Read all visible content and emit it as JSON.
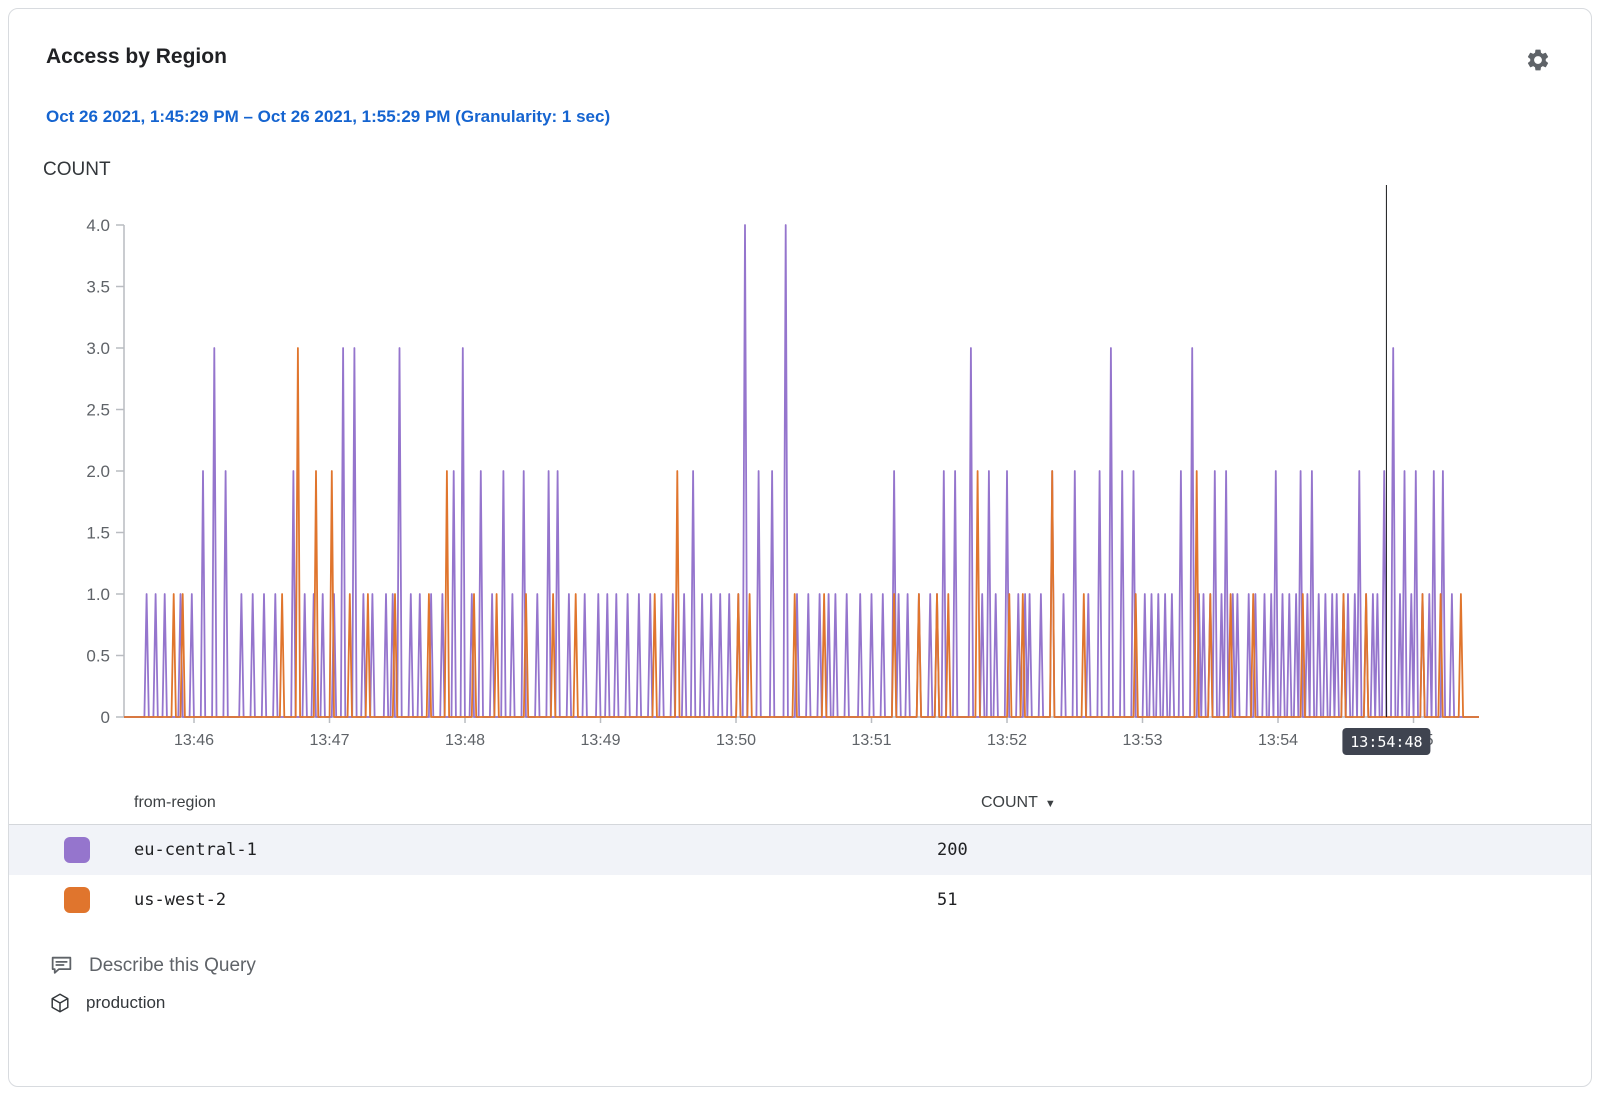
{
  "header": {
    "title": "Access by Region"
  },
  "time_range": "Oct 26 2021, 1:45:29 PM – Oct 26 2021, 1:55:29 PM (Granularity: 1 sec)",
  "chart": {
    "y_label": "COUNT",
    "crosshair_label": "13:54:48",
    "crosshair_t": 559
  },
  "chart_data": {
    "type": "line",
    "title": "Access by Region",
    "x_start": "13:45:29",
    "x_end": "13:55:29",
    "granularity_sec": 1,
    "x_domain_sec": [
      0,
      600
    ],
    "ylim": [
      0,
      4
    ],
    "y_ticks": [
      "0",
      "0.5",
      "1.0",
      "1.5",
      "2.0",
      "2.5",
      "3.0",
      "3.5",
      "4.0"
    ],
    "x_ticks": [
      [
        "13:46",
        31
      ],
      [
        "13:47",
        91
      ],
      [
        "13:48",
        151
      ],
      [
        "13:49",
        211
      ],
      [
        "13:50",
        271
      ],
      [
        "13:51",
        331
      ],
      [
        "13:52",
        391
      ],
      [
        "13:53",
        451
      ],
      [
        "13:54",
        511
      ],
      [
        "13:55",
        571
      ]
    ],
    "legend_position": "table-below",
    "grid": false,
    "series": [
      {
        "name": "eu-central-1",
        "color": "#9575cd",
        "total": 200,
        "spikes": [
          [
            10,
            1
          ],
          [
            14,
            1
          ],
          [
            18,
            1
          ],
          [
            25,
            1
          ],
          [
            30,
            1
          ],
          [
            35,
            2
          ],
          [
            40,
            3
          ],
          [
            45,
            2
          ],
          [
            52,
            1
          ],
          [
            57,
            1
          ],
          [
            62,
            1
          ],
          [
            67,
            1
          ],
          [
            75,
            2
          ],
          [
            80,
            1
          ],
          [
            84,
            1
          ],
          [
            88,
            1
          ],
          [
            93,
            1
          ],
          [
            97,
            3
          ],
          [
            102,
            3
          ],
          [
            106,
            1
          ],
          [
            110,
            1
          ],
          [
            116,
            1
          ],
          [
            119,
            1
          ],
          [
            122,
            3
          ],
          [
            127,
            1
          ],
          [
            131,
            1
          ],
          [
            136,
            1
          ],
          [
            141,
            1
          ],
          [
            146,
            2
          ],
          [
            150,
            3
          ],
          [
            154,
            1
          ],
          [
            158,
            2
          ],
          [
            163,
            1
          ],
          [
            168,
            2
          ],
          [
            172,
            1
          ],
          [
            177,
            2
          ],
          [
            183,
            1
          ],
          [
            188,
            2
          ],
          [
            192,
            2
          ],
          [
            197,
            1
          ],
          [
            204,
            1
          ],
          [
            210,
            1
          ],
          [
            214,
            1
          ],
          [
            218,
            1
          ],
          [
            223,
            1
          ],
          [
            228,
            1
          ],
          [
            233,
            1
          ],
          [
            238,
            1
          ],
          [
            243,
            1
          ],
          [
            248,
            1
          ],
          [
            252,
            2
          ],
          [
            256,
            1
          ],
          [
            260,
            1
          ],
          [
            264,
            1
          ],
          [
            268,
            1
          ],
          [
            272,
            1
          ],
          [
            275,
            4
          ],
          [
            281,
            2
          ],
          [
            287,
            2
          ],
          [
            293,
            4
          ],
          [
            298,
            1
          ],
          [
            303,
            1
          ],
          [
            308,
            1
          ],
          [
            312,
            1
          ],
          [
            315,
            1
          ],
          [
            320,
            1
          ],
          [
            326,
            1
          ],
          [
            331,
            1
          ],
          [
            336,
            1
          ],
          [
            341,
            2
          ],
          [
            343,
            1
          ],
          [
            347,
            1
          ],
          [
            352,
            1
          ],
          [
            357,
            1
          ],
          [
            360,
            1
          ],
          [
            363,
            2
          ],
          [
            368,
            2
          ],
          [
            375,
            3
          ],
          [
            380,
            1
          ],
          [
            383,
            2
          ],
          [
            386,
            1
          ],
          [
            391,
            2
          ],
          [
            396,
            1
          ],
          [
            399,
            1
          ],
          [
            401,
            1
          ],
          [
            406,
            1
          ],
          [
            411,
            2
          ],
          [
            416,
            1
          ],
          [
            421,
            2
          ],
          [
            427,
            1
          ],
          [
            432,
            2
          ],
          [
            437,
            3
          ],
          [
            442,
            2
          ],
          [
            447,
            2
          ],
          [
            452,
            1
          ],
          [
            455,
            1
          ],
          [
            458,
            1
          ],
          [
            461,
            1
          ],
          [
            464,
            1
          ],
          [
            468,
            2
          ],
          [
            473,
            3
          ],
          [
            476,
            1
          ],
          [
            478,
            1
          ],
          [
            481,
            1
          ],
          [
            483,
            2
          ],
          [
            486,
            1
          ],
          [
            488,
            2
          ],
          [
            491,
            1
          ],
          [
            493,
            1
          ],
          [
            498,
            1
          ],
          [
            501,
            1
          ],
          [
            505,
            1
          ],
          [
            508,
            1
          ],
          [
            510,
            2
          ],
          [
            513,
            1
          ],
          [
            516,
            1
          ],
          [
            519,
            1
          ],
          [
            521,
            2
          ],
          [
            524,
            1
          ],
          [
            526,
            2
          ],
          [
            529,
            1
          ],
          [
            532,
            1
          ],
          [
            535,
            1
          ],
          [
            537,
            1
          ],
          [
            540,
            1
          ],
          [
            542,
            1
          ],
          [
            545,
            1
          ],
          [
            547,
            2
          ],
          [
            550,
            1
          ],
          [
            553,
            1
          ],
          [
            555,
            1
          ],
          [
            558,
            2
          ],
          [
            562,
            3
          ],
          [
            565,
            1
          ],
          [
            567,
            2
          ],
          [
            570,
            1
          ],
          [
            572,
            2
          ],
          [
            575,
            1
          ],
          [
            578,
            1
          ],
          [
            580,
            2
          ],
          [
            584,
            2
          ],
          [
            588,
            1
          ]
        ]
      },
      {
        "name": "us-west-2",
        "color": "#e0752d",
        "total": 51,
        "spikes": [
          [
            22,
            1
          ],
          [
            26,
            1
          ],
          [
            70,
            1
          ],
          [
            77,
            3
          ],
          [
            85,
            2
          ],
          [
            92,
            2
          ],
          [
            100,
            1
          ],
          [
            108,
            1
          ],
          [
            120,
            1
          ],
          [
            135,
            1
          ],
          [
            143,
            2
          ],
          [
            155,
            1
          ],
          [
            165,
            1
          ],
          [
            178,
            1
          ],
          [
            190,
            1
          ],
          [
            200,
            1
          ],
          [
            235,
            1
          ],
          [
            245,
            2
          ],
          [
            272,
            1
          ],
          [
            277,
            1
          ],
          [
            297,
            1
          ],
          [
            310,
            1
          ],
          [
            341,
            1
          ],
          [
            352,
            1
          ],
          [
            360,
            1
          ],
          [
            365,
            1
          ],
          [
            378,
            2
          ],
          [
            392,
            1
          ],
          [
            398,
            1
          ],
          [
            411,
            2
          ],
          [
            425,
            1
          ],
          [
            448,
            1
          ],
          [
            475,
            2
          ],
          [
            481,
            1
          ],
          [
            490,
            1
          ],
          [
            500,
            1
          ],
          [
            522,
            1
          ],
          [
            540,
            1
          ],
          [
            550,
            1
          ],
          [
            575,
            1
          ],
          [
            583,
            1
          ],
          [
            592,
            1
          ]
        ]
      }
    ]
  },
  "table": {
    "region_col": "from-region",
    "count_col": "COUNT",
    "sort_icon": "▼",
    "rows": [
      {
        "name": "eu-central-1",
        "count": "200",
        "color": "#9575cd"
      },
      {
        "name": "us-west-2",
        "count": "51",
        "color": "#e0752d"
      }
    ]
  },
  "footer": {
    "describe": "Describe this Query",
    "environment": "production"
  }
}
